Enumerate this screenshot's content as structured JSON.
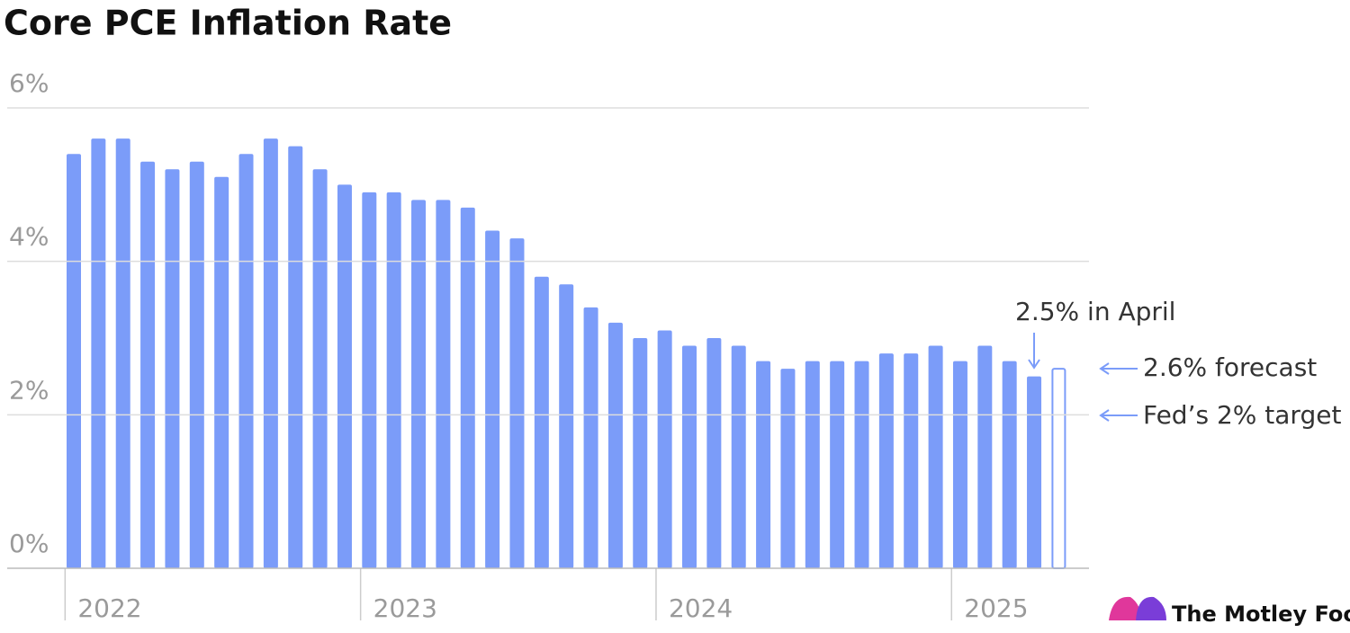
{
  "chart_data": {
    "type": "bar",
    "title": "Core PCE Inflation Rate",
    "categories": [
      "2022",
      null,
      null,
      null,
      null,
      null,
      null,
      null,
      null,
      null,
      null,
      null,
      "2023",
      null,
      null,
      null,
      null,
      null,
      null,
      null,
      null,
      null,
      null,
      null,
      "2024",
      null,
      null,
      null,
      null,
      null,
      null,
      null,
      null,
      null,
      null,
      null,
      "2025",
      null,
      null,
      null,
      null
    ],
    "series": [
      {
        "color": "#7b9cf9",
        "style": "filled",
        "values": [
          5.4,
          5.6,
          5.6,
          5.3,
          5.2,
          5.3,
          5.1,
          5.4,
          5.6,
          5.5,
          5.2,
          5.0,
          4.9,
          4.9,
          4.8,
          4.8,
          4.7,
          4.4,
          4.3,
          3.8,
          3.7,
          3.4,
          3.2,
          3.0,
          3.1,
          2.9,
          3.0,
          2.9,
          2.7,
          2.6,
          2.7,
          2.7,
          2.7,
          2.8,
          2.8,
          2.9,
          2.7,
          2.9,
          2.7,
          2.5,
          null
        ]
      },
      {
        "color": "#7b9cf9",
        "style": "outline",
        "values": [
          null,
          null,
          null,
          null,
          null,
          null,
          null,
          null,
          null,
          null,
          null,
          null,
          null,
          null,
          null,
          null,
          null,
          null,
          null,
          null,
          null,
          null,
          null,
          null,
          null,
          null,
          null,
          null,
          null,
          null,
          null,
          null,
          null,
          null,
          null,
          null,
          null,
          null,
          null,
          null,
          2.6
        ]
      }
    ],
    "ylim": [
      0,
      6
    ],
    "yticks": [
      {
        "value": 0,
        "label": "0%"
      },
      {
        "value": 2,
        "label": "2%"
      },
      {
        "value": 4,
        "label": "4%"
      },
      {
        "value": 6,
        "label": "6%"
      }
    ],
    "grid": true,
    "annotations": [
      "2.5% in April",
      "2.6% forecast",
      "Fed’s 2% target"
    ],
    "source": "The Motley Fool"
  }
}
